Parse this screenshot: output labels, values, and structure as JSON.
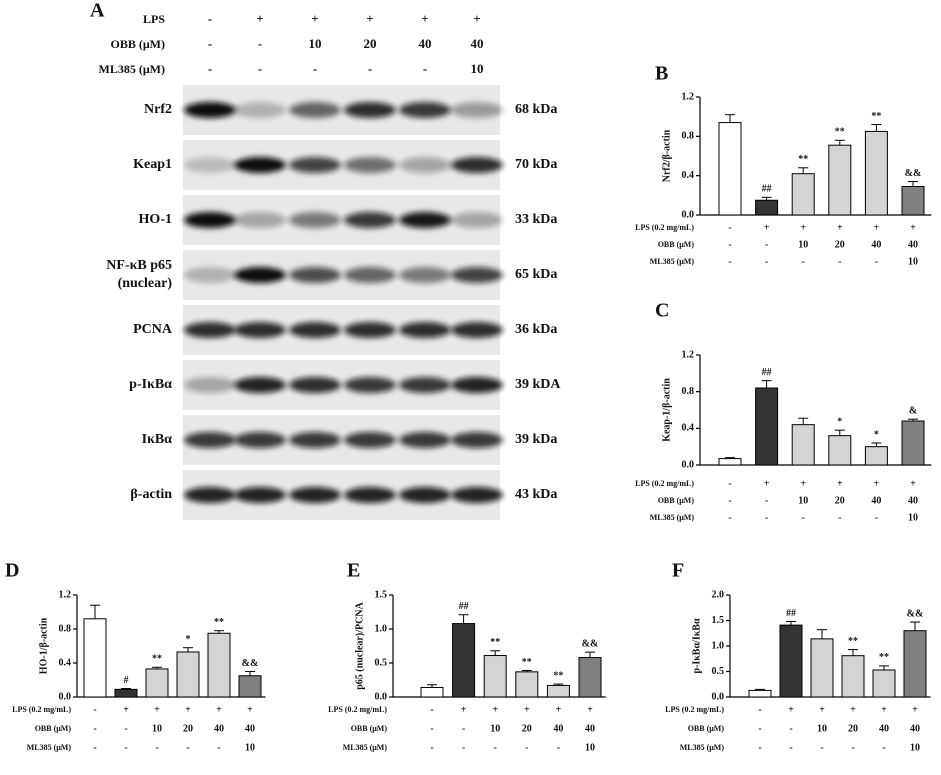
{
  "panel_a": {
    "label": "A",
    "conditions": [
      {
        "label": "LPS",
        "values": [
          "-",
          "+",
          "+",
          "+",
          "+",
          "+"
        ]
      },
      {
        "label": "OBB (μM)",
        "values": [
          "-",
          "-",
          "10",
          "20",
          "40",
          "40"
        ]
      },
      {
        "label": "ML385 (μM)",
        "values": [
          "-",
          "-",
          "-",
          "-",
          "-",
          "10"
        ]
      }
    ],
    "bands": [
      {
        "name": "Nrf2",
        "size": "68 kDa"
      },
      {
        "name": "Keap1",
        "size": "70 kDa"
      },
      {
        "name": "HO-1",
        "size": "33 kDa"
      },
      {
        "name": "NF-κB p65",
        "name2": "(nuclear)",
        "size": "65 kDa"
      },
      {
        "name": "PCNA",
        "size": "36 kDa"
      },
      {
        "name": "p-IκBα",
        "size": "39 kDA"
      },
      {
        "name": "IκBα",
        "size": "39 kDa"
      },
      {
        "name": "β-actin",
        "size": "43 kDa"
      }
    ]
  },
  "chart_data": [
    {
      "type": "bar",
      "label": "B",
      "ylabel": "Nrf2/β-actin",
      "values": [
        0.94,
        0.15,
        0.42,
        0.71,
        0.85,
        0.29
      ],
      "errors": [
        0.08,
        0.03,
        0.06,
        0.05,
        0.07,
        0.05
      ],
      "annotations": [
        null,
        "##",
        "**",
        "**",
        "**",
        "&&"
      ],
      "colors": [
        "#ffffff",
        "#333333",
        "#d4d4d4",
        "#d4d4d4",
        "#d4d4d4",
        "#808080"
      ],
      "ylim": [
        0,
        1.2
      ],
      "yticks": [
        {
          "value": 0,
          "label": "0.0"
        },
        0.4,
        0.8,
        1.2
      ],
      "conditions": [
        {
          "label": "LPS (0.2 mg/mL)",
          "values": [
            "-",
            "+",
            "+",
            "+",
            "+",
            "+"
          ]
        },
        {
          "label": "OBB (μM)",
          "values": [
            "-",
            "-",
            "10",
            "20",
            "40",
            "40"
          ]
        },
        {
          "label": "ML385 (μM)",
          "values": [
            "-",
            "-",
            "-",
            "-",
            "-",
            "10"
          ]
        }
      ]
    },
    {
      "type": "bar",
      "label": "C",
      "ylabel": "Keap-1/β-actin",
      "values": [
        0.07,
        0.84,
        0.44,
        0.32,
        0.2,
        0.48
      ],
      "errors": [
        0.01,
        0.08,
        0.07,
        0.06,
        0.04,
        0.02
      ],
      "annotations": [
        null,
        "##",
        null,
        "*",
        "*",
        "&"
      ],
      "colors": [
        "#ffffff",
        "#333333",
        "#d4d4d4",
        "#d4d4d4",
        "#d4d4d4",
        "#808080"
      ],
      "ylim": [
        0,
        1.2
      ],
      "yticks": [
        {
          "value": 0,
          "label": "0.0"
        },
        0.4,
        0.8,
        1.2
      ],
      "conditions": [
        {
          "label": "LPS (0.2 mg/mL)",
          "values": [
            "-",
            "+",
            "+",
            "+",
            "+",
            "+"
          ]
        },
        {
          "label": "OBB (μM)",
          "values": [
            "-",
            "-",
            "10",
            "20",
            "40",
            "40"
          ]
        },
        {
          "label": "ML385 (μM)",
          "values": [
            "-",
            "-",
            "-",
            "-",
            "-",
            "10"
          ]
        }
      ]
    },
    {
      "type": "bar",
      "label": "D",
      "ylabel": "HO-1/β-actin",
      "values": [
        0.92,
        0.09,
        0.33,
        0.53,
        0.75,
        0.25
      ],
      "errors": [
        0.16,
        0.01,
        0.02,
        0.05,
        0.03,
        0.05
      ],
      "annotations": [
        null,
        "#",
        "**",
        "*",
        "**",
        "&&"
      ],
      "colors": [
        "#ffffff",
        "#333333",
        "#d4d4d4",
        "#d4d4d4",
        "#d4d4d4",
        "#808080"
      ],
      "ylim": [
        0,
        1.2
      ],
      "yticks": [
        {
          "value": 0,
          "label": "0.0"
        },
        0.4,
        0.8,
        1.2
      ],
      "conditions": [
        {
          "label": "LPS (0.2 mg/mL)",
          "values": [
            "-",
            "+",
            "+",
            "+",
            "+",
            "+"
          ]
        },
        {
          "label": "OBB (μM)",
          "values": [
            "-",
            "-",
            "10",
            "20",
            "40",
            "40"
          ]
        },
        {
          "label": "ML385 (μM)",
          "values": [
            "-",
            "-",
            "-",
            "-",
            "-",
            "10"
          ]
        }
      ]
    },
    {
      "type": "bar",
      "label": "E",
      "ylabel": "p65 (nuclear)/PCNA",
      "values": [
        0.14,
        1.08,
        0.61,
        0.37,
        0.17,
        0.58
      ],
      "errors": [
        0.04,
        0.13,
        0.07,
        0.02,
        0.02,
        0.08
      ],
      "annotations": [
        null,
        "##",
        "**",
        "**",
        "**",
        "&&"
      ],
      "colors": [
        "#ffffff",
        "#333333",
        "#d4d4d4",
        "#d4d4d4",
        "#d4d4d4",
        "#808080"
      ],
      "ylim": [
        0,
        1.5
      ],
      "yticks": [
        {
          "value": 0,
          "label": "0.0"
        },
        0.5,
        {
          "value": 1,
          "label": "1.0"
        },
        1.5
      ],
      "conditions": [
        {
          "label": "LPS (0.2 mg/mL)",
          "values": [
            "-",
            "+",
            "+",
            "+",
            "+",
            "+"
          ]
        },
        {
          "label": "OBB (μM)",
          "values": [
            "-",
            "-",
            "10",
            "20",
            "40",
            "40"
          ]
        },
        {
          "label": "ML385 (μM)",
          "values": [
            "-",
            "-",
            "-",
            "-",
            "-",
            "10"
          ]
        }
      ]
    },
    {
      "type": "bar",
      "label": "F",
      "ylabel": "p-IκBα/IκBα",
      "values": [
        0.13,
        1.41,
        1.14,
        0.81,
        0.53,
        1.3
      ],
      "errors": [
        0.02,
        0.07,
        0.18,
        0.12,
        0.08,
        0.17
      ],
      "annotations": [
        null,
        "##",
        null,
        "**",
        "**",
        "&&"
      ],
      "colors": [
        "#ffffff",
        "#333333",
        "#d4d4d4",
        "#d4d4d4",
        "#d4d4d4",
        "#808080"
      ],
      "ylim": [
        0,
        2
      ],
      "yticks": [
        {
          "value": 0,
          "label": "0.0"
        },
        0.5,
        {
          "value": 1,
          "label": "1.0"
        },
        1.5,
        {
          "value": 2,
          "label": "2.0"
        }
      ],
      "conditions": [
        {
          "label": "LPS (0.2 mg/mL)",
          "values": [
            "-",
            "+",
            "+",
            "+",
            "+",
            "+"
          ]
        },
        {
          "label": "OBB (μM)",
          "values": [
            "-",
            "-",
            "10",
            "20",
            "40",
            "40"
          ]
        },
        {
          "label": "ML385 (μM)",
          "values": [
            "-",
            "-",
            "-",
            "-",
            "-",
            "10"
          ]
        }
      ]
    }
  ]
}
